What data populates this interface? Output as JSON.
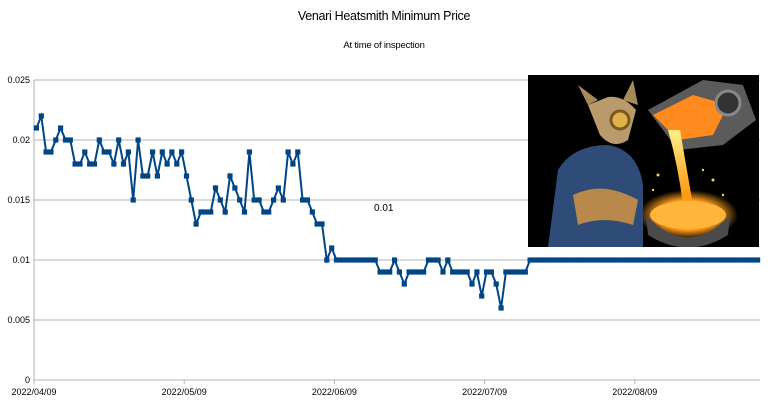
{
  "chart_data": {
    "type": "line",
    "title": "Venari Heatsmith Minimum Price",
    "subtitle": "At time of inspection",
    "xlabel": "",
    "ylabel": "",
    "ylim": [
      0,
      0.025
    ],
    "y_ticks": [
      "0",
      "0.005",
      "0.01",
      "0.015",
      "0.02",
      "0.025"
    ],
    "x_ticks": [
      "2022/04/09",
      "2022/05/09",
      "2022/06/09",
      "2022/07/09",
      "2022/08/09"
    ],
    "grid": true,
    "legend": "none",
    "series_color": "#004586",
    "annotation": "0.01",
    "series": [
      {
        "values": [
          0.021,
          0.022,
          0.019,
          0.019,
          0.02,
          0.021,
          0.02,
          0.02,
          0.018,
          0.018,
          0.019,
          0.018,
          0.018,
          0.02,
          0.019,
          0.019,
          0.018,
          0.02,
          0.018,
          0.019,
          0.015,
          0.02,
          0.017,
          0.017,
          0.019,
          0.017,
          0.019,
          0.018,
          0.019,
          0.018,
          0.019,
          0.017,
          0.015,
          0.013,
          0.014,
          0.014,
          0.014,
          0.016,
          0.015,
          0.014,
          0.017,
          0.016,
          0.015,
          0.014,
          0.019,
          0.015,
          0.015,
          0.014,
          0.014,
          0.015,
          0.016,
          0.015,
          0.019,
          0.018,
          0.019,
          0.015,
          0.015,
          0.014,
          0.013,
          0.013,
          0.01,
          0.011,
          0.01,
          0.01,
          0.01,
          0.01,
          0.01,
          0.01,
          0.01,
          0.01,
          0.01,
          0.009,
          0.009,
          0.009,
          0.01,
          0.009,
          0.008,
          0.009,
          0.009,
          0.009,
          0.009,
          0.01,
          0.01,
          0.01,
          0.009,
          0.01,
          0.009,
          0.009,
          0.009,
          0.009,
          0.008,
          0.009,
          0.007,
          0.009,
          0.009,
          0.008,
          0.006,
          0.009,
          0.009,
          0.009,
          0.009,
          0.009,
          0.01,
          0.01,
          0.01,
          0.01,
          0.01,
          0.01,
          0.01,
          0.01,
          0.01,
          0.01,
          0.01,
          0.01,
          0.01,
          0.01,
          0.01,
          0.01,
          0.01,
          0.01,
          0.01,
          0.01,
          0.01,
          0.01,
          0.01,
          0.01,
          0.01,
          0.01,
          0.01,
          0.01,
          0.01,
          0.01,
          0.01,
          0.01,
          0.01,
          0.01,
          0.01,
          0.01,
          0.01,
          0.01,
          0.01,
          0.01,
          0.01,
          0.01,
          0.01,
          0.01,
          0.01,
          0.01,
          0.01,
          0.01
        ]
      }
    ]
  },
  "illustration": {
    "icon": "heatsmith-illustration",
    "colors": {
      "background": "#000000",
      "molten": "#ff9c1a",
      "glow": "#ffe36b",
      "cauldron": "#6e6e6e"
    }
  }
}
